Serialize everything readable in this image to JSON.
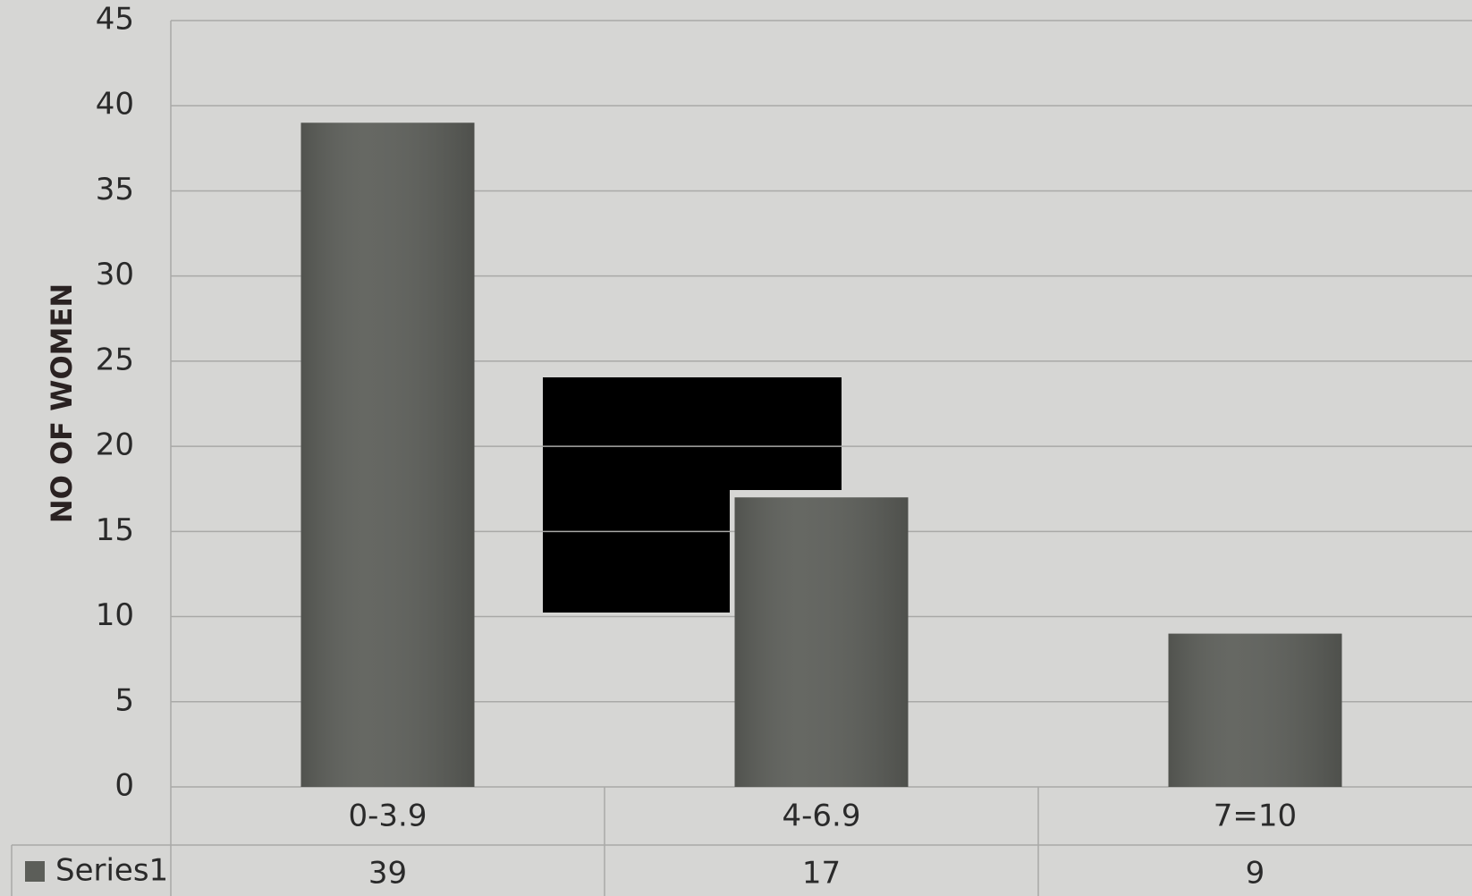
{
  "chart_data": {
    "type": "bar",
    "y_label": "NO OF WOMEN",
    "categories": [
      "0-3.9",
      "4-6.9",
      "7=10"
    ],
    "series": [
      {
        "name": "Series1",
        "color": "#5c5e59",
        "values": [
          39,
          17,
          9
        ]
      }
    ],
    "ylim": [
      0,
      45
    ],
    "yticks": [
      0,
      5,
      10,
      15,
      20,
      25,
      30,
      35,
      40,
      45
    ],
    "grid": true,
    "data_table": true
  }
}
